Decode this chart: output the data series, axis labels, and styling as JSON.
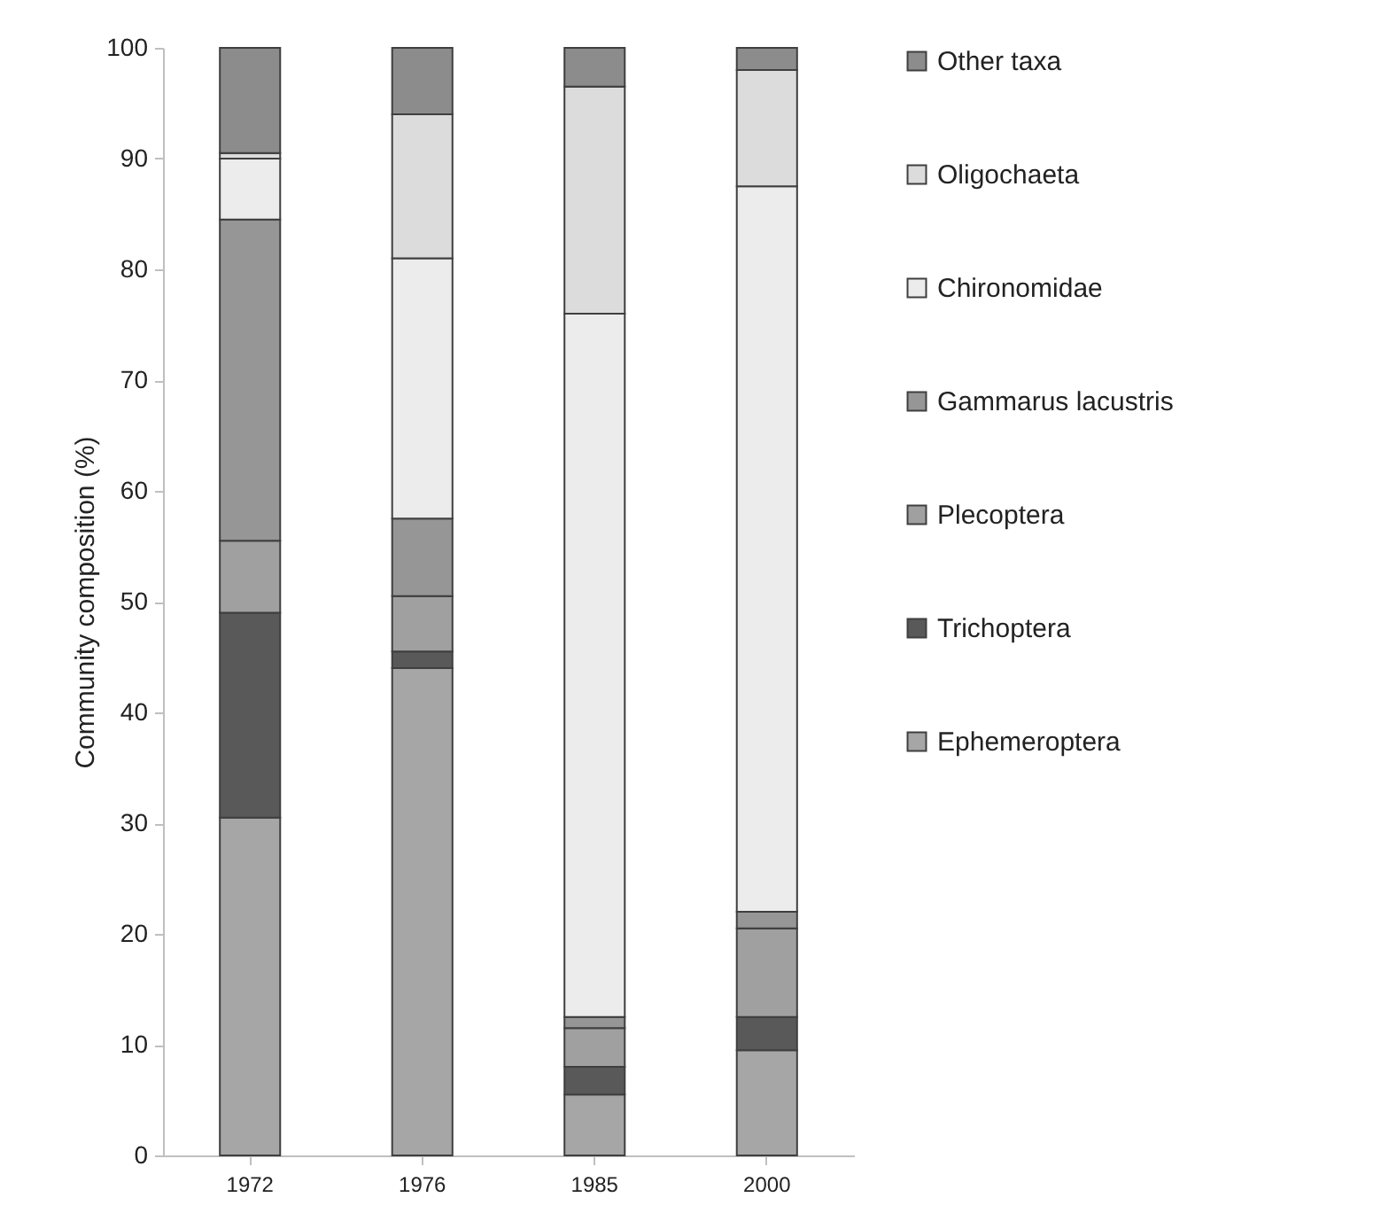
{
  "chart_data": {
    "type": "bar",
    "stacked": true,
    "ylabel": "Community composition (%)",
    "categories": [
      "1972",
      "1976",
      "1985",
      "2000"
    ],
    "ylim": [
      0,
      100
    ],
    "yticks": [
      0,
      10,
      20,
      30,
      40,
      50,
      60,
      70,
      80,
      90,
      100
    ],
    "grid": false,
    "legend": "right",
    "series": [
      {
        "name": "Ephemeroptera",
        "color": "#a6a6a6",
        "values": [
          30.5,
          44,
          5.5,
          9.5
        ]
      },
      {
        "name": "Trichoptera",
        "color": "#595959",
        "values": [
          18.5,
          1.5,
          2.5,
          3
        ]
      },
      {
        "name": "Plecoptera",
        "color": "#a0a0a0",
        "values": [
          6.5,
          5,
          3.5,
          8
        ]
      },
      {
        "name": "Gammarus lacustris",
        "color": "#969696",
        "values": [
          29,
          7,
          1,
          1.5
        ]
      },
      {
        "name": "Chironomidae",
        "color": "#ececec",
        "values": [
          5.5,
          23.5,
          63.5,
          65.5
        ]
      },
      {
        "name": "Oligochaeta",
        "color": "#dcdcdc",
        "values": [
          0.5,
          13,
          20.5,
          10.5
        ]
      },
      {
        "name": "Other taxa",
        "color": "#8c8c8c",
        "values": [
          9.5,
          6,
          3.5,
          2
        ]
      }
    ]
  }
}
